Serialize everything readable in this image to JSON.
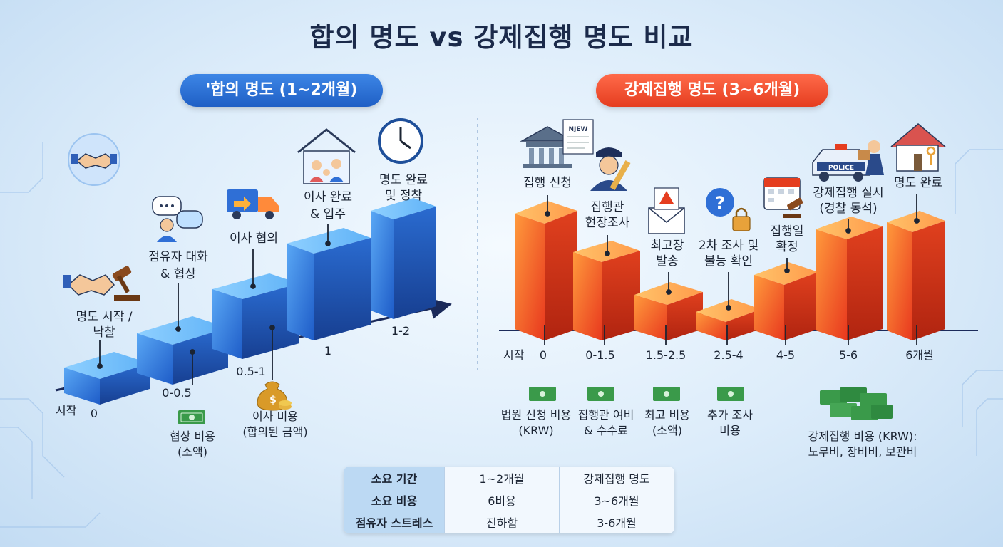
{
  "title": "합의 명도 vs 강제집행 명도 비교",
  "left": {
    "pill": "'합의 명도 (1~2개월)",
    "axis_start": "시작",
    "ticks": [
      "0",
      "0-0.5",
      "0.5-1",
      "1",
      "1-2"
    ],
    "steps": [
      {
        "lines": [
          "명도 시작 /",
          "낙찰"
        ],
        "icon": "handshake-gavel-icon"
      },
      {
        "lines": [
          "점유자 대화",
          "& 협상"
        ],
        "icon": "chat-person-icon"
      },
      {
        "lines": [
          "이사 협의"
        ],
        "icon": "moving-truck-icon"
      },
      {
        "lines": [
          "이사 완료",
          "& 입주"
        ],
        "icon": "family-house-icon"
      },
      {
        "lines": [
          "명도 완료",
          "및 정착"
        ],
        "icon": "clock-icon"
      }
    ],
    "costs": [
      {
        "lines": [
          "협상 비용",
          "(소액)"
        ],
        "icon": "money-icon"
      },
      {
        "lines": [
          "이사 비용",
          "(합의된 금액)"
        ],
        "icon": "money-bag-icon",
        "symbol": "$"
      }
    ]
  },
  "right": {
    "pill": "강제집행 명도 (3~6개월)",
    "axis_start": "시작",
    "ticks": [
      "0",
      "0-1.5",
      "1.5-2.5",
      "2.5-4",
      "4-5",
      "5-6",
      "6개월"
    ],
    "steps": [
      {
        "lines": [
          "집행 신청"
        ],
        "icon": "court-document-icon",
        "doc": "NJEW"
      },
      {
        "lines": [
          "집행관",
          "현장조사"
        ],
        "icon": "officer-icon"
      },
      {
        "lines": [
          "최고장",
          "발송"
        ],
        "icon": "warning-mail-icon"
      },
      {
        "lines": [
          "2차 조사 및",
          "불능 확인"
        ],
        "icon": "question-lock-icon"
      },
      {
        "lines": [
          "집행일",
          "확정"
        ],
        "icon": "calendar-gavel-icon"
      },
      {
        "lines": [
          "강제집행 실시",
          "(경찰 동석)"
        ],
        "icon": "police-car-icon",
        "car_text": "POLICE"
      },
      {
        "lines": [
          "명도 완료"
        ],
        "icon": "house-key-icon"
      }
    ],
    "costs": [
      {
        "lines": [
          "법원 신청 비용",
          "(KRW)"
        ]
      },
      {
        "lines": [
          "집행관 여비",
          "& 수수료"
        ]
      },
      {
        "lines": [
          "최고 비용",
          "(소액)"
        ]
      },
      {
        "lines": [
          "추가 조사",
          "비용"
        ]
      },
      {
        "lines": [
          "강제집행 비용 (KRW):",
          "노무비, 장비비, 보관비"
        ]
      }
    ]
  },
  "table": {
    "rows": [
      [
        "소요 기간",
        "1~2개월",
        "강제집행 명도"
      ],
      [
        "소요 비용",
        "6비용",
        "3~6개월"
      ],
      [
        "점유자 스트레스",
        "진하함",
        "3-6개월"
      ]
    ]
  },
  "colors": {
    "blue_accent": "#2f6fd6",
    "red_accent": "#f04a2a",
    "money_green": "#3a9a4a"
  }
}
